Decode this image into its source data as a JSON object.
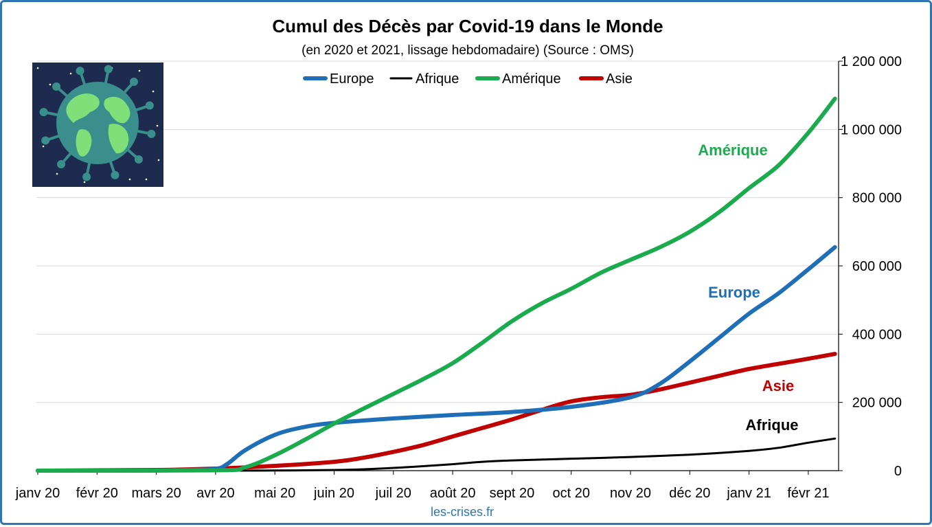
{
  "chart_data": {
    "type": "line",
    "title": "Cumul des Décès par Covid-19 dans le Monde",
    "subtitle": "(en 2020 et 2021, lissage hebdomadaire) (Source : OMS)",
    "credit": "les-crises.fr",
    "categories": [
      "janv 20",
      "févr 20",
      "mars 20",
      "avr 20",
      "mai 20",
      "juin 20",
      "juil 20",
      "août 20",
      "sept 20",
      "oct 20",
      "nov 20",
      "déc 20",
      "janv 21",
      "févr 21"
    ],
    "y_ticks": [
      "0",
      "200 000",
      "400 000",
      "600 000",
      "800 000",
      "1 000 000",
      "1 200 000"
    ],
    "ylim": [
      0,
      1200000
    ],
    "y_axis_side": "right",
    "grid": true,
    "legend_position": "top",
    "series": [
      {
        "name": "Europe",
        "color": "#1f6fb8",
        "width": 6,
        "annotation": "Europe",
        "x": [
          0,
          1,
          2,
          2.5,
          3,
          3.2,
          3.5,
          4,
          4.5,
          5,
          6,
          7,
          8,
          9,
          10,
          10.5,
          11,
          11.5,
          12,
          12.5,
          13,
          13.45
        ],
        "y": [
          0,
          0,
          500,
          2000,
          5000,
          20000,
          60000,
          105000,
          128000,
          140000,
          153000,
          163000,
          172000,
          187000,
          215000,
          255000,
          320000,
          390000,
          460000,
          520000,
          590000,
          655000
        ]
      },
      {
        "name": "Afrique",
        "color": "#000000",
        "width": 3,
        "annotation": "Afrique",
        "x": [
          0,
          3,
          4,
          5,
          5.5,
          6,
          6.5,
          7,
          7.5,
          8,
          9,
          10,
          11,
          12,
          12.5,
          13,
          13.45
        ],
        "y": [
          0,
          0,
          500,
          2000,
          4000,
          8000,
          13000,
          19000,
          26000,
          30000,
          35000,
          40000,
          47000,
          58000,
          67000,
          82000,
          94000
        ]
      },
      {
        "name": "Amérique",
        "color": "#1aab4e",
        "width": 6,
        "annotation": "Amérique",
        "x": [
          0,
          3,
          3.5,
          4,
          4.5,
          5,
          5.5,
          6,
          6.5,
          7,
          7.5,
          8,
          8.5,
          9,
          9.5,
          10,
          10.5,
          11,
          11.5,
          12,
          12.5,
          13,
          13.45
        ],
        "y": [
          0,
          1000,
          10000,
          45000,
          90000,
          138000,
          182000,
          225000,
          268000,
          315000,
          375000,
          438000,
          490000,
          533000,
          580000,
          618000,
          655000,
          700000,
          758000,
          828000,
          895000,
          990000,
          1090000
        ]
      },
      {
        "name": "Asie",
        "color": "#c00000",
        "width": 6,
        "annotation": "Asie",
        "x": [
          0,
          2,
          3,
          4,
          5,
          5.5,
          6,
          6.5,
          7,
          7.5,
          8,
          8.5,
          9,
          9.5,
          10,
          10.5,
          11,
          11.5,
          12,
          12.5,
          13,
          13.45
        ],
        "y": [
          0,
          2000,
          6000,
          14000,
          26000,
          38000,
          55000,
          75000,
          100000,
          125000,
          150000,
          178000,
          203000,
          215000,
          222000,
          238000,
          258000,
          278000,
          298000,
          313000,
          328000,
          342000
        ]
      }
    ]
  },
  "illustration": {
    "name": "globe-virus-illustration",
    "bg_color": "#1d2b4f",
    "globe_color": "#3a8f8c",
    "land_color": "#7fe07a",
    "spike_color": "#3a8f8c"
  }
}
